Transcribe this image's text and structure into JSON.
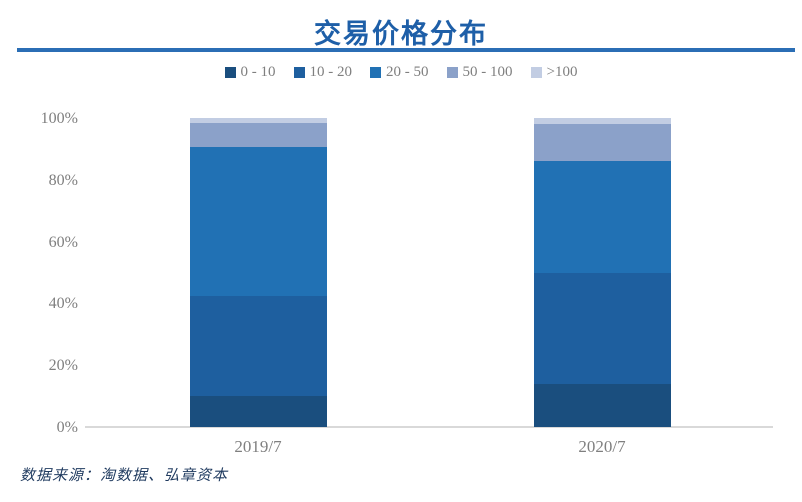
{
  "header": {
    "title": "交易价格分布"
  },
  "footer": {
    "source": "数据来源：淘数据、弘章资本"
  },
  "colors": {
    "title_text": "#1E5FA8",
    "title_rule": "#2B6EB5",
    "axis_label": "#7F7F7F",
    "baseline": "#D9D9D9",
    "source_text": "#1F3A5F"
  },
  "chart_data": {
    "type": "bar",
    "stacked": true,
    "title": "交易价格分布",
    "categories": [
      "2019/7",
      "2020/7"
    ],
    "series": [
      {
        "name": "0 - 10",
        "color": "#1A4E7E",
        "values": [
          10,
          14
        ]
      },
      {
        "name": "10 - 20",
        "color": "#1E5F9F",
        "values": [
          32.5,
          36
        ]
      },
      {
        "name": "20 - 50",
        "color": "#2171B4",
        "values": [
          48,
          36
        ]
      },
      {
        "name": "50 - 100",
        "color": "#8BA1C9",
        "values": [
          8,
          12
        ]
      },
      {
        "name": ">100",
        "color": "#C2CDE3",
        "values": [
          1.5,
          2
        ]
      }
    ],
    "xlabel": "",
    "ylabel": "",
    "ylim": [
      0,
      100
    ],
    "yticks": [
      "0%",
      "20%",
      "40%",
      "60%",
      "80%",
      "100%"
    ],
    "legend_position": "top",
    "grid": false
  }
}
